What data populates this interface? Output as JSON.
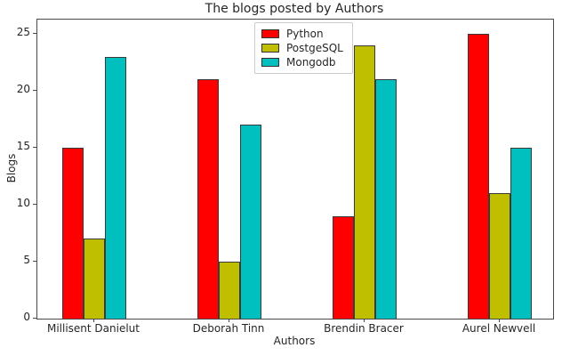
{
  "chart_data": {
    "type": "bar",
    "title": "The blogs posted by Authors",
    "xlabel": "Authors",
    "ylabel": "Blogs",
    "categories": [
      "Millisent Danielut",
      "Deborah Tinn",
      "Brendin Bracer",
      "Aurel Newvell"
    ],
    "series": [
      {
        "name": "Python",
        "color": "#FF0000",
        "values": [
          15,
          21,
          9,
          25
        ]
      },
      {
        "name": "PostgeSQL",
        "color": "#BFBF00",
        "values": [
          7,
          5,
          24,
          11
        ]
      },
      {
        "name": "Mongodb",
        "color": "#00BFBF",
        "values": [
          23,
          17,
          21,
          15
        ]
      }
    ],
    "yticks": [
      0,
      5,
      10,
      15,
      20,
      25
    ],
    "ylim": [
      0,
      26.25
    ],
    "grid": false,
    "legend_position": "upper center",
    "bar_edge_color": "#3a3a3a",
    "spine_color": "#4a4a4a"
  }
}
